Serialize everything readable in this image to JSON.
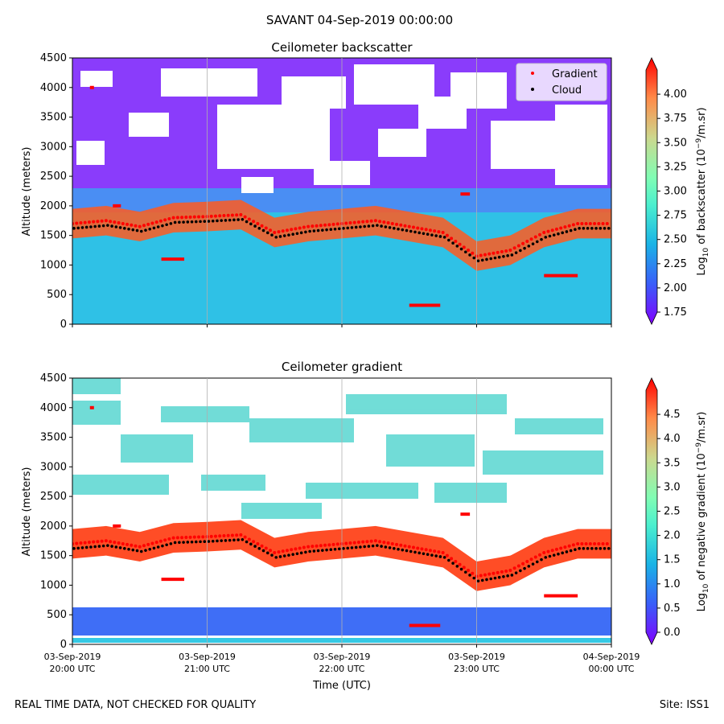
{
  "suptitle": "SAVANT 04-Sep-2019 00:00:00",
  "footer": {
    "left": "REAL TIME DATA, NOT CHECKED FOR QUALITY",
    "right": "Site: ISS1"
  },
  "chart_data": [
    {
      "type": "heatmap",
      "title": "Ceilometer backscatter",
      "ylabel": "Altitude (meters)",
      "xlabel": "",
      "ylim": [
        0,
        4500
      ],
      "yticks": [
        0,
        500,
        1000,
        1500,
        2000,
        2500,
        3000,
        3500,
        4000,
        4500
      ],
      "xlim_hours": [
        20,
        24
      ],
      "colorbar": {
        "label_pre": "Log",
        "label_sub": "10",
        "label_mid": " of backscatter (10",
        "label_sup": "−9",
        "label_post": "/m.sr)",
        "range": [
          1.75,
          4.25
        ],
        "ticks": [
          "1.75",
          "2.00",
          "2.25",
          "2.50",
          "2.75",
          "3.00",
          "3.25",
          "3.50",
          "3.75",
          "4.00"
        ]
      },
      "legend": {
        "position": "top-right",
        "entries": [
          {
            "label": "Gradient",
            "color": "#ff0000"
          },
          {
            "label": "Cloud",
            "color": "#000000"
          }
        ]
      }
    },
    {
      "type": "heatmap",
      "title": "Ceilometer gradient",
      "ylabel": "Altitude (meters)",
      "xlabel": "Time (UTC)",
      "ylim": [
        0,
        4500
      ],
      "yticks": [
        0,
        500,
        1000,
        1500,
        2000,
        2500,
        3000,
        3500,
        4000,
        4500
      ],
      "xlim_hours": [
        20,
        24
      ],
      "xticks": [
        {
          "hour": 20,
          "date": "03-Sep-2019",
          "time": "20:00 UTC"
        },
        {
          "hour": 21,
          "date": "03-Sep-2019",
          "time": "21:00 UTC"
        },
        {
          "hour": 22,
          "date": "03-Sep-2019",
          "time": "22:00 UTC"
        },
        {
          "hour": 23,
          "date": "03-Sep-2019",
          "time": "23:00 UTC"
        },
        {
          "hour": 24,
          "date": "04-Sep-2019",
          "time": "00:00 UTC"
        }
      ],
      "colorbar": {
        "label_pre": "Log",
        "label_sub": "10",
        "label_mid": " of negative gradient (10",
        "label_sup": "−9",
        "label_post": "/m.sr)",
        "range": [
          0.0,
          5.0
        ],
        "ticks": [
          "0.0",
          "0.5",
          "1.0",
          "1.5",
          "2.0",
          "2.5",
          "3.0",
          "3.5",
          "4.0",
          "4.5"
        ]
      }
    }
  ],
  "series": {
    "cloud_layer_approx": [
      {
        "hour": 20.0,
        "altitude": 1700
      },
      {
        "hour": 20.25,
        "altitude": 1750
      },
      {
        "hour": 20.5,
        "altitude": 1650
      },
      {
        "hour": 20.75,
        "altitude": 1800
      },
      {
        "hour": 21.0,
        "altitude": 1820
      },
      {
        "hour": 21.25,
        "altitude": 1850
      },
      {
        "hour": 21.5,
        "altitude": 1550
      },
      {
        "hour": 21.75,
        "altitude": 1650
      },
      {
        "hour": 22.0,
        "altitude": 1700
      },
      {
        "hour": 22.25,
        "altitude": 1750
      },
      {
        "hour": 22.5,
        "altitude": 1650
      },
      {
        "hour": 22.75,
        "altitude": 1550
      },
      {
        "hour": 23.0,
        "altitude": 1150
      },
      {
        "hour": 23.25,
        "altitude": 1250
      },
      {
        "hour": 23.5,
        "altitude": 1550
      },
      {
        "hour": 23.75,
        "altitude": 1700
      },
      {
        "hour": 24.0,
        "altitude": 1700
      }
    ],
    "gradient_bars_approx": [
      {
        "hour_start": 20.13,
        "hour_end": 20.16,
        "altitude": 4000
      },
      {
        "hour_start": 20.3,
        "hour_end": 20.36,
        "altitude": 2000
      },
      {
        "hour_start": 20.66,
        "hour_end": 20.83,
        "altitude": 1100
      },
      {
        "hour_start": 22.5,
        "hour_end": 22.73,
        "altitude": 320
      },
      {
        "hour_start": 23.5,
        "hour_end": 23.75,
        "altitude": 820
      },
      {
        "hour_start": 22.88,
        "hour_end": 22.95,
        "altitude": 2200
      }
    ]
  }
}
